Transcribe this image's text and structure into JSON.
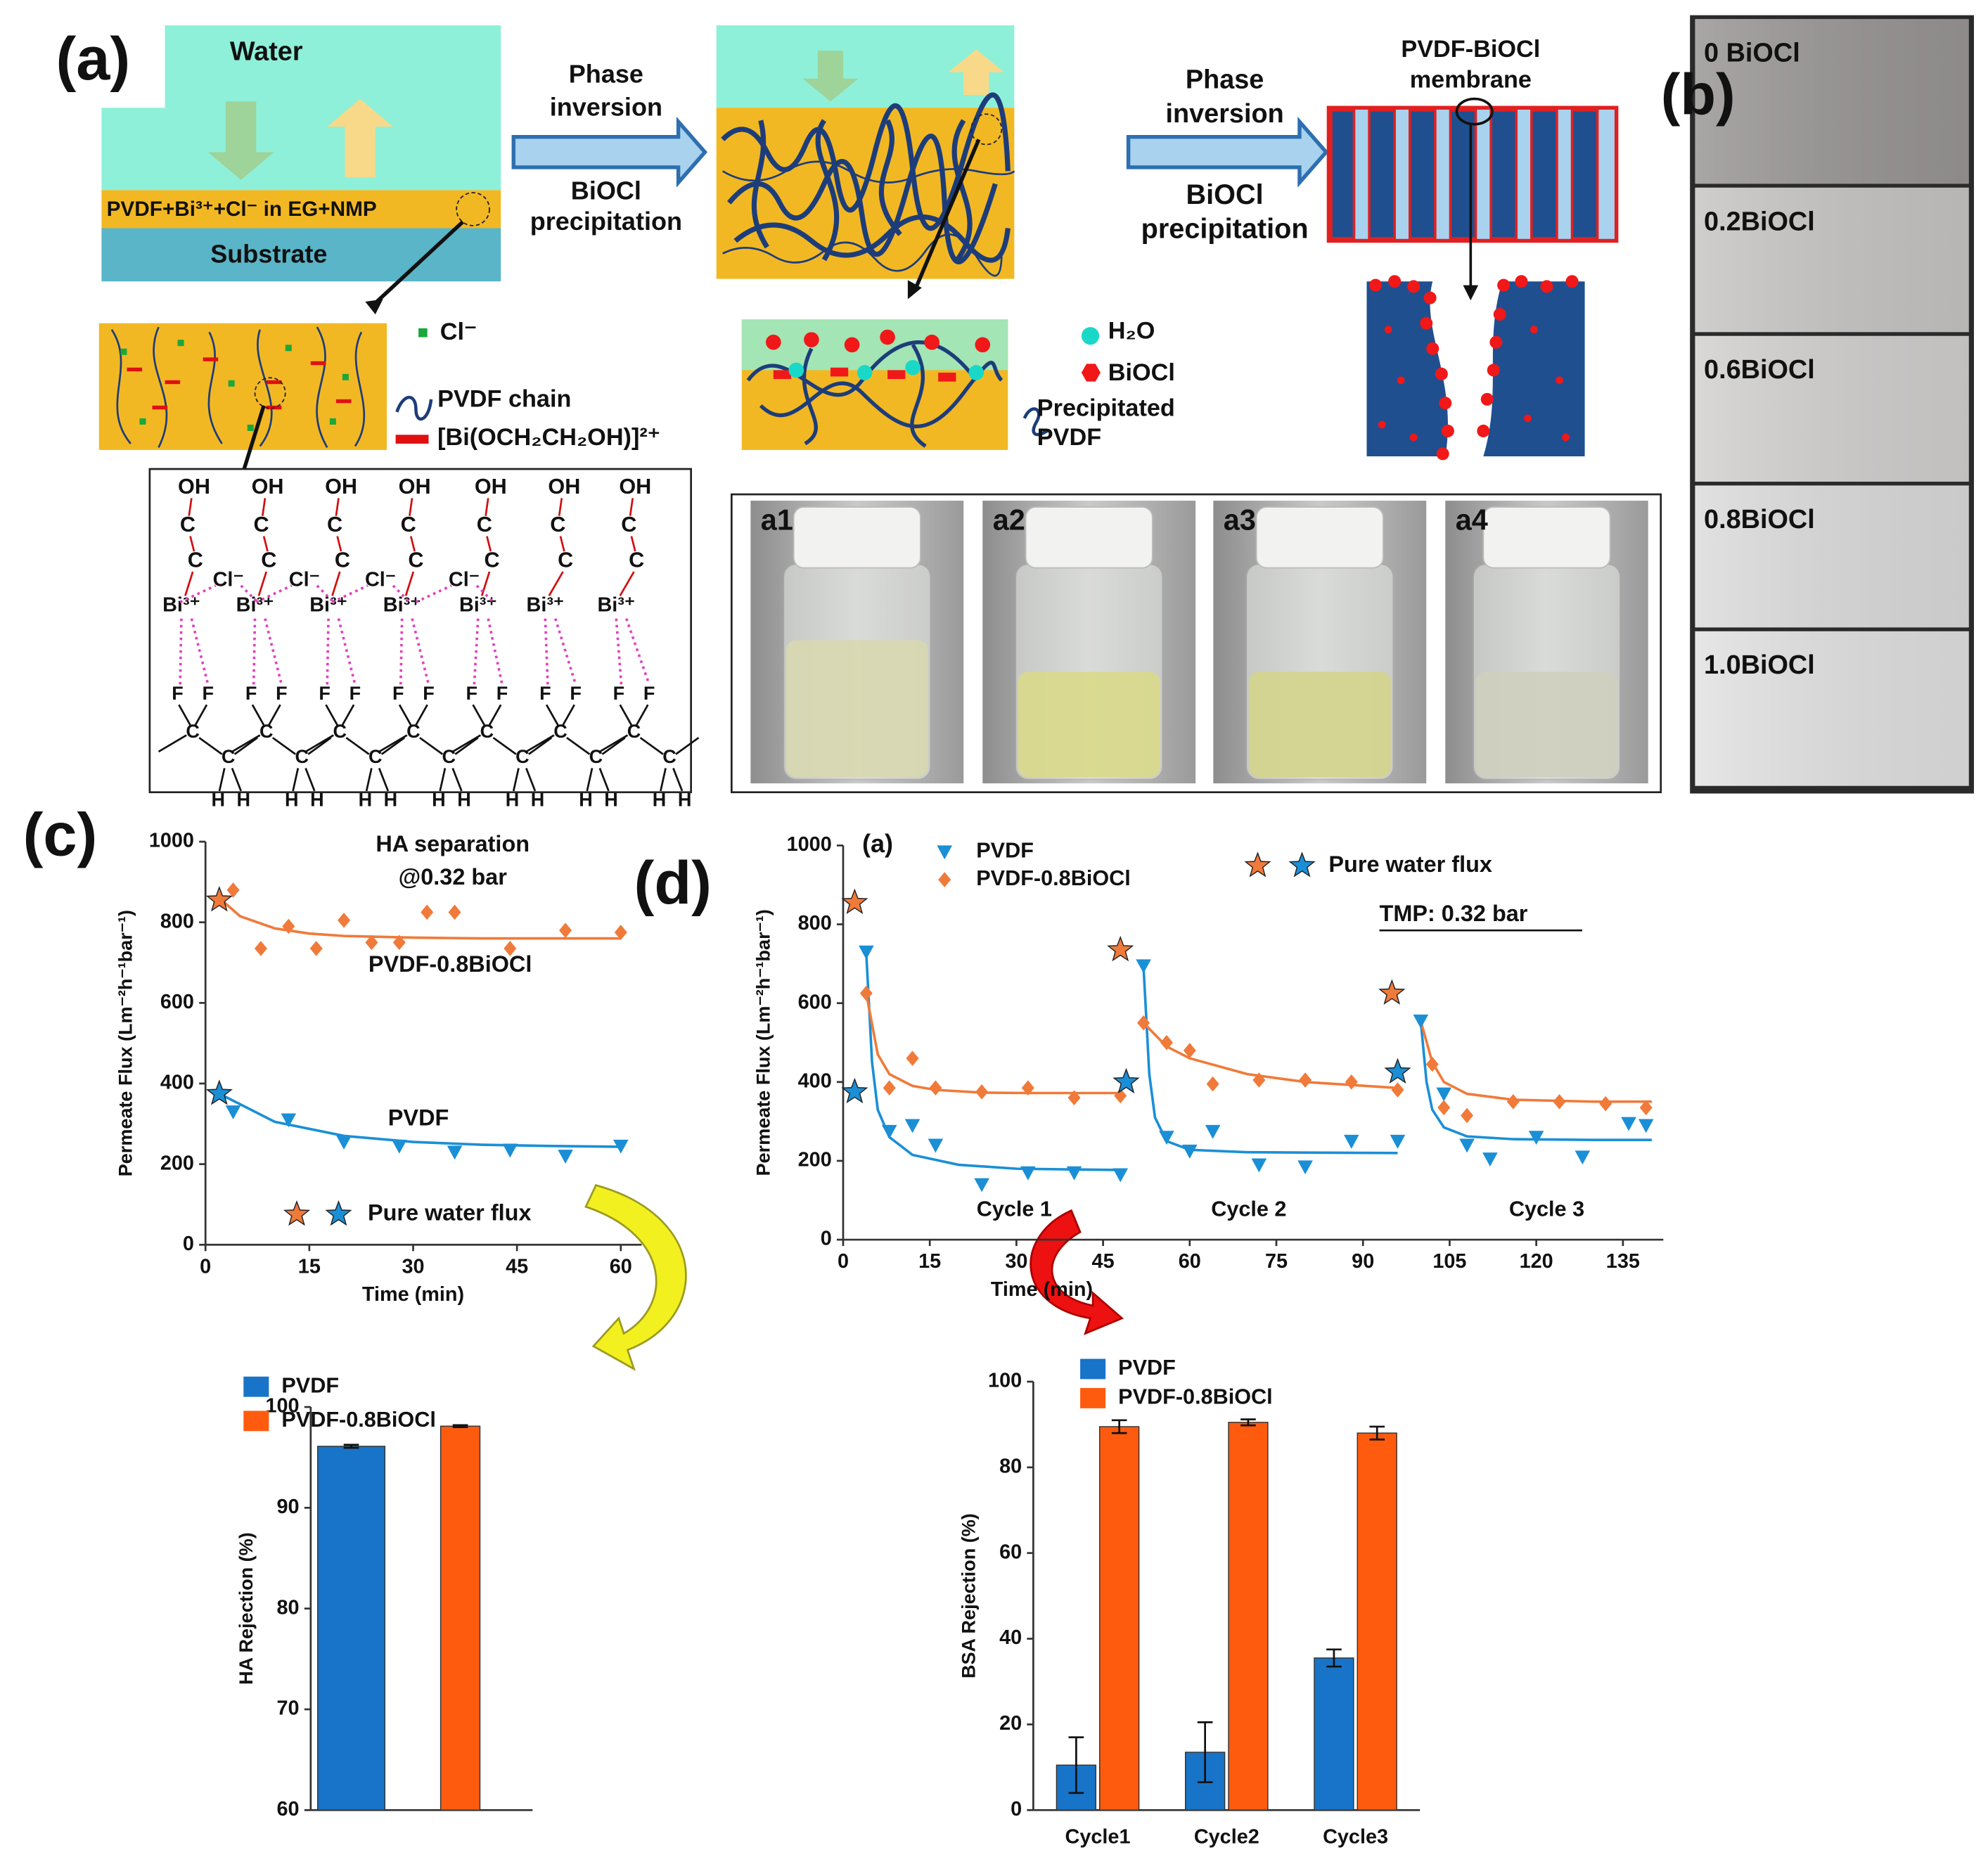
{
  "panels": {
    "a": "(a)",
    "b": "(b)",
    "c": "(c)",
    "d": "(d)"
  },
  "scheme": {
    "water": "Water",
    "solution": "PVDF+Bi³⁺+Cl⁻ in EG+NMP",
    "substrate": "Substrate",
    "step1": [
      "Phase",
      "inversion",
      "BiOCl",
      "precipitation"
    ],
    "step2": [
      "Phase",
      "inversion",
      "BiOCl",
      "precipitation"
    ],
    "membrane": [
      "PVDF-BiOCl",
      "membrane"
    ],
    "legend1": [
      "Cl⁻",
      "PVDF chain",
      "[Bi(OCH₂CH₂OH)]²⁺"
    ],
    "legend2": [
      "H₂O",
      "BiOCl",
      "Precipitated",
      "PVDF"
    ]
  },
  "structure": {
    "oh": "OH",
    "c": "C",
    "bi": "Bi³⁺",
    "cl": "Cl⁻",
    "f": "F",
    "h": "H"
  },
  "vials": [
    "a1",
    "a2",
    "a3",
    "a4"
  ],
  "membranes": [
    "0 BiOCl",
    "0.2BiOCl",
    "0.6BiOCl",
    "0.8BiOCl",
    "1.0BiOCl"
  ],
  "chart_data": [
    {
      "type": "scatter",
      "y_label": "Permeate Flux (Lm⁻²h⁻¹bar⁻¹)",
      "x_label": "Time (min)",
      "annotations": [
        "HA separation",
        "@0.32 bar"
      ],
      "xlim": [
        0,
        63
      ],
      "xticks": [
        0,
        15,
        30,
        45,
        60
      ],
      "ylim": [
        0,
        1000
      ],
      "yticks": [
        0,
        200,
        400,
        600,
        800,
        1000
      ],
      "series": [
        {
          "name": "PVDF-0.8BiOCl",
          "color": "#f07a3a",
          "marker": "diamond",
          "x": [
            4,
            8,
            12,
            16,
            20,
            24,
            28,
            32,
            36,
            44,
            52,
            60
          ],
          "values": [
            880,
            735,
            790,
            735,
            805,
            750,
            750,
            825,
            825,
            735,
            780,
            775
          ]
        },
        {
          "name": "PVDF",
          "color": "#1a8fd6",
          "marker": "triangle",
          "x": [
            4,
            12,
            20,
            28,
            36,
            44,
            52,
            60
          ],
          "values": [
            330,
            310,
            255,
            245,
            230,
            235,
            220,
            245
          ]
        }
      ],
      "curves": [
        {
          "color": "#f07a3a",
          "x": [
            2,
            5,
            10,
            15,
            20,
            30,
            40,
            50,
            60
          ],
          "values": [
            860,
            815,
            785,
            772,
            766,
            762,
            760,
            760,
            760
          ]
        },
        {
          "color": "#1a8fd6",
          "x": [
            2,
            10,
            20,
            30,
            40,
            50,
            60
          ],
          "values": [
            375,
            305,
            270,
            255,
            248,
            245,
            243
          ]
        }
      ],
      "reference": {
        "name": "Pure water flux",
        "x": [
          2,
          2
        ],
        "values": [
          855,
          375
        ],
        "colors": [
          "#f07a3a",
          "#1a8fd6"
        ]
      }
    },
    {
      "type": "scatter",
      "panel_label": "(a)",
      "y_label": "Permeate Flux (Lm⁻²h⁻¹bar⁻¹)",
      "x_label": "Time (min)",
      "annotations": [
        "TMP: 0.32 bar"
      ],
      "cycles": [
        "Cycle 1",
        "Cycle 2",
        "Cycle 3"
      ],
      "xlim": [
        0,
        142
      ],
      "xticks": [
        0,
        15,
        30,
        45,
        60,
        75,
        90,
        105,
        120,
        135
      ],
      "ylim": [
        0,
        1000
      ],
      "yticks": [
        0,
        200,
        400,
        600,
        800,
        1000
      ],
      "series": [
        {
          "name": "PVDF",
          "color": "#1a8fd6",
          "marker": "triangle",
          "x": [
            4,
            8,
            12,
            16,
            24,
            32,
            40,
            48,
            52,
            56,
            60,
            64,
            72,
            80,
            88,
            96,
            100,
            104,
            108,
            112,
            120,
            128,
            136,
            139
          ],
          "values": [
            730,
            275,
            290,
            240,
            140,
            170,
            170,
            165,
            695,
            260,
            225,
            275,
            190,
            185,
            250,
            250,
            555,
            370,
            240,
            205,
            260,
            210,
            295,
            290
          ]
        },
        {
          "name": "PVDF-0.8BiOCl",
          "color": "#f07a3a",
          "marker": "diamond",
          "x": [
            4,
            8,
            12,
            16,
            24,
            32,
            40,
            48,
            52,
            56,
            60,
            64,
            72,
            80,
            88,
            96,
            102,
            104,
            108,
            116,
            124,
            132,
            139
          ],
          "values": [
            625,
            385,
            460,
            385,
            375,
            385,
            360,
            365,
            550,
            500,
            480,
            395,
            405,
            405,
            400,
            380,
            445,
            335,
            315,
            350,
            350,
            345,
            335
          ]
        }
      ],
      "curves": [
        {
          "color": "#1a8fd6",
          "x": [
            4,
            5,
            6,
            8,
            12,
            20,
            30,
            40,
            48
          ],
          "values": [
            730,
            450,
            330,
            260,
            215,
            190,
            180,
            178,
            177
          ]
        },
        {
          "color": "#1a8fd6",
          "x": [
            52,
            53,
            54,
            56,
            60,
            70,
            80,
            96
          ],
          "values": [
            695,
            420,
            310,
            250,
            228,
            222,
            221,
            220
          ]
        },
        {
          "color": "#1a8fd6",
          "x": [
            100,
            101,
            102,
            104,
            108,
            116,
            130,
            140
          ],
          "values": [
            555,
            400,
            330,
            285,
            262,
            255,
            253,
            253
          ]
        },
        {
          "color": "#f07a3a",
          "x": [
            4,
            6,
            8,
            12,
            16,
            24,
            32,
            40,
            48
          ],
          "values": [
            625,
            470,
            420,
            390,
            380,
            373,
            372,
            372,
            372
          ]
        },
        {
          "color": "#f07a3a",
          "x": [
            52,
            56,
            60,
            70,
            80,
            96
          ],
          "values": [
            550,
            490,
            460,
            420,
            400,
            385
          ]
        },
        {
          "color": "#f07a3a",
          "x": [
            100,
            102,
            104,
            108,
            116,
            130,
            140
          ],
          "values": [
            555,
            450,
            400,
            370,
            355,
            350,
            350
          ]
        }
      ],
      "reference": {
        "name": "Pure water flux",
        "x": [
          2,
          2,
          48,
          49,
          95,
          96
        ],
        "values": [
          855,
          375,
          735,
          400,
          625,
          425
        ],
        "colors": [
          "#f07a3a",
          "#1a8fd6",
          "#f07a3a",
          "#1a8fd6",
          "#f07a3a",
          "#1a8fd6"
        ]
      }
    },
    {
      "type": "bar",
      "y_label": "HA Rejection (%)",
      "categories": [
        null
      ],
      "ylim": [
        60,
        100
      ],
      "yticks": [
        60,
        70,
        80,
        90,
        100
      ],
      "series": [
        {
          "name": "PVDF",
          "color": "#1874c8",
          "values": [
            96.1
          ],
          "errors": [
            0.15
          ]
        },
        {
          "name": "PVDF-0.8BiOCl",
          "color": "#ff5b0f",
          "values": [
            98.1
          ],
          "errors": [
            0.1
          ]
        }
      ]
    },
    {
      "type": "bar",
      "y_label": "BSA Rejection (%)",
      "categories": [
        "Cycle1",
        "Cycle2",
        "Cycle3"
      ],
      "ylim": [
        0,
        100
      ],
      "yticks": [
        0,
        20,
        40,
        60,
        80,
        100
      ],
      "series": [
        {
          "name": "PVDF",
          "color": "#1874c8",
          "values": [
            10.5,
            13.5,
            35.5
          ],
          "errors": [
            6.5,
            7,
            2
          ]
        },
        {
          "name": "PVDF-0.8BiOCl",
          "color": "#ff5b0f",
          "values": [
            89.5,
            90.5,
            88
          ],
          "errors": [
            1.5,
            0.7,
            1.5
          ]
        }
      ]
    }
  ]
}
